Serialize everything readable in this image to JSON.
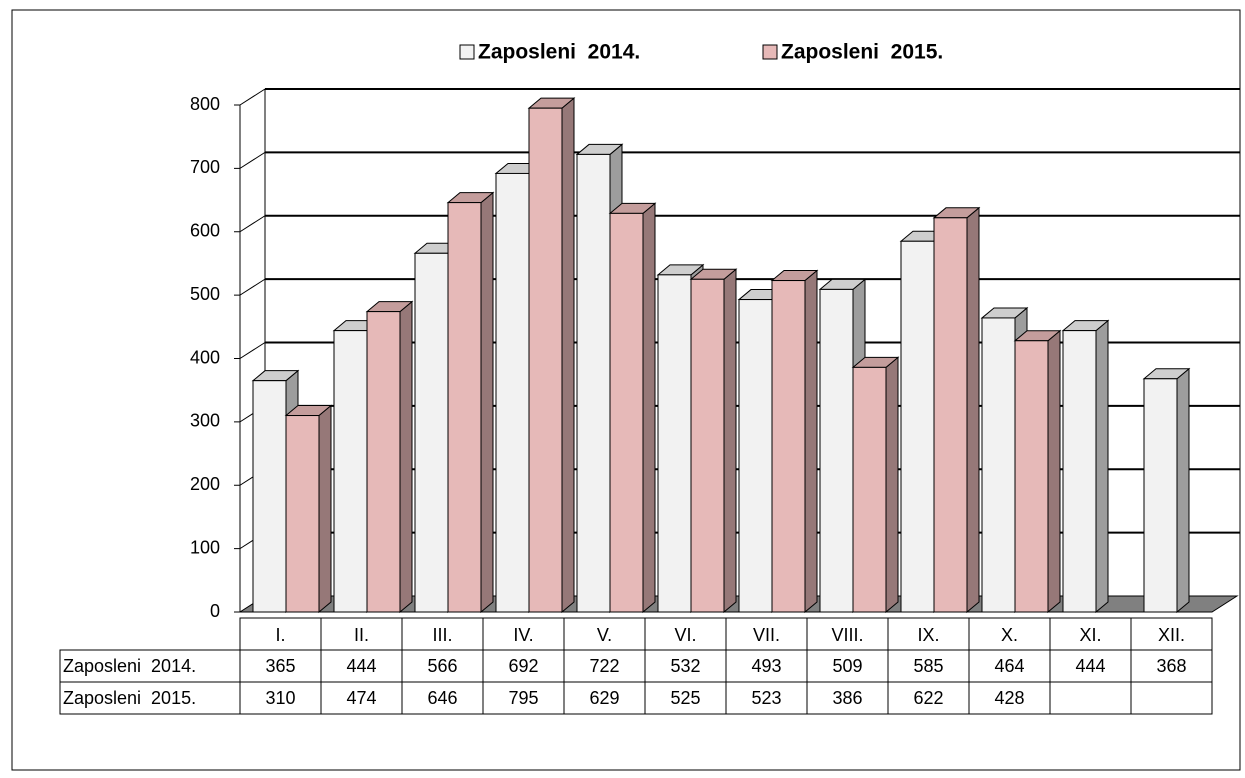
{
  "chart_data": {
    "type": "bar3d",
    "categories": [
      "I.",
      "II.",
      "III.",
      "IV.",
      "V.",
      "VI.",
      "VII.",
      "VIII.",
      "IX.",
      "X.",
      "XI.",
      "XII."
    ],
    "series": [
      {
        "name": "Zaposleni  2014.",
        "color": "#f2f2f2",
        "values": [
          365,
          444,
          566,
          692,
          722,
          532,
          493,
          509,
          585,
          464,
          444,
          368
        ]
      },
      {
        "name": "Zaposleni  2015.",
        "color": "#e6b9b8",
        "values": [
          310,
          474,
          646,
          795,
          629,
          525,
          523,
          386,
          622,
          428,
          null,
          null
        ]
      }
    ],
    "ylim": [
      0,
      800
    ],
    "yticks": [
      0,
      100,
      200,
      300,
      400,
      500,
      600,
      700,
      800
    ],
    "grid": true,
    "legend": "top",
    "data_table": true
  }
}
